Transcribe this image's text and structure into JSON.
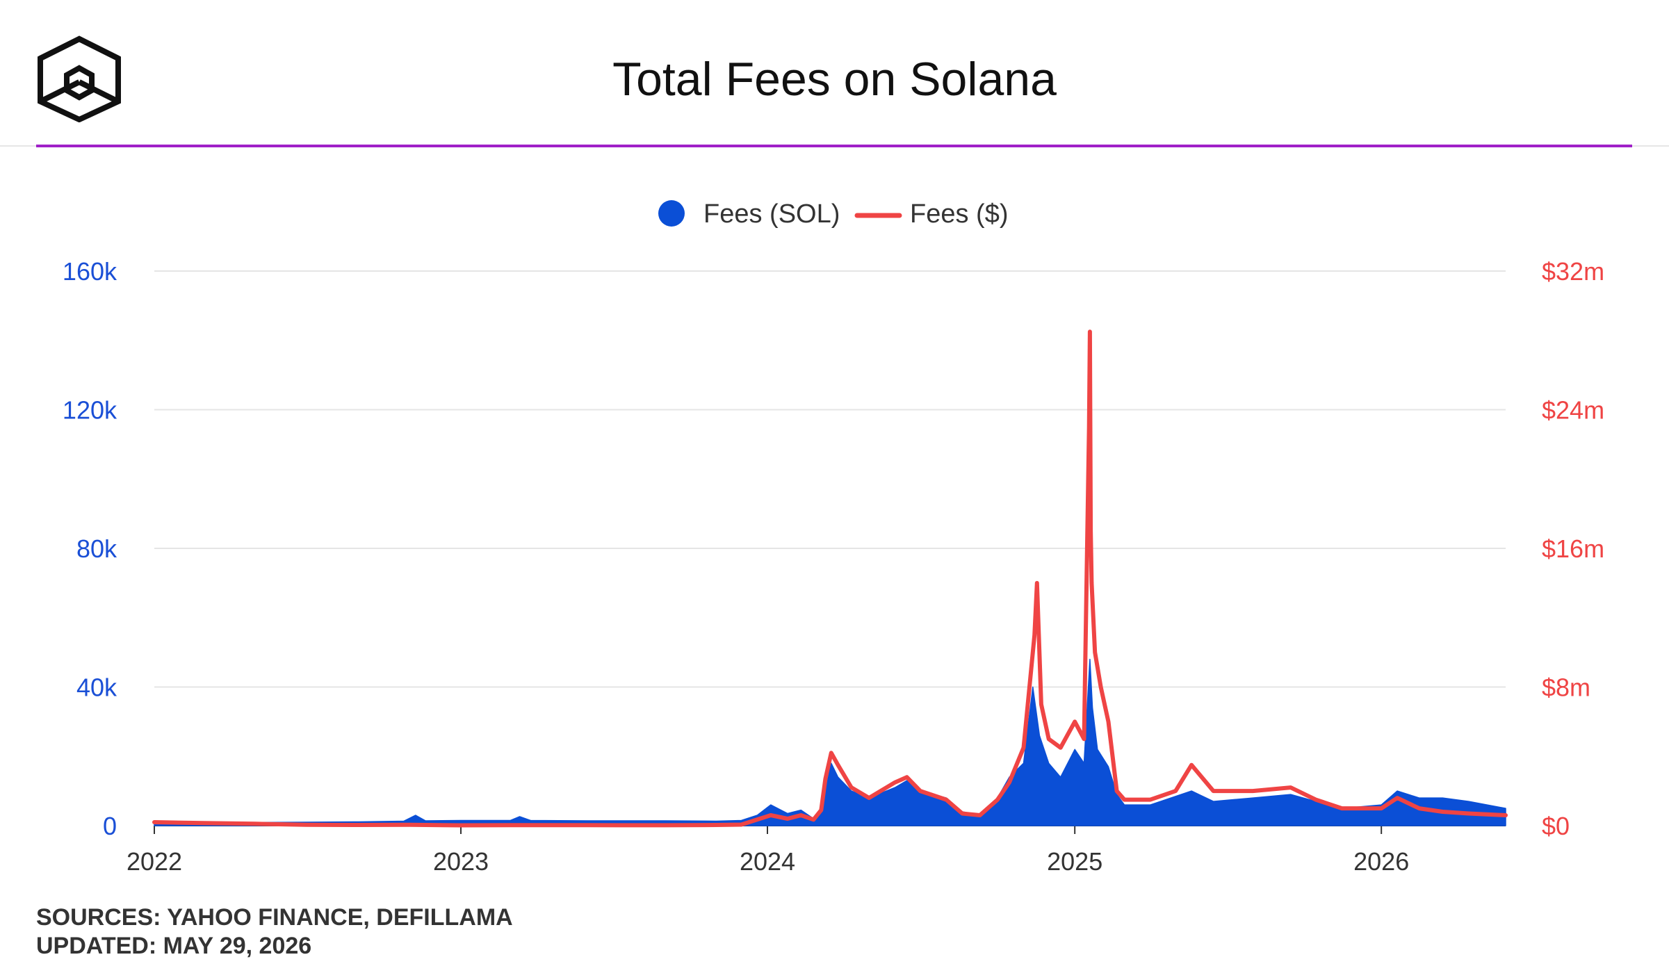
{
  "header": {
    "title": "Total Fees on Solana",
    "logo_icon": "cube-logo-icon",
    "accent_color": "#a020c8"
  },
  "footer": {
    "sources": "SOURCES: YAHOO FINANCE, DEFILLAMA",
    "updated": "UPDATED: MAY 29, 2026"
  },
  "chart_data": {
    "type": "area",
    "title": "Total Fees on Solana",
    "legend_position": "top-center",
    "grid": true,
    "x_axis": {
      "label": "",
      "range": [
        "2022-01-01",
        "2026-05-29"
      ],
      "ticks": [
        "2022",
        "2023",
        "2024",
        "2025",
        "2026"
      ]
    },
    "y_axis_left": {
      "label": "",
      "range": [
        0,
        160000
      ],
      "ticks": [
        "0",
        "40k",
        "80k",
        "120k",
        "160k"
      ],
      "color": "#1a4fd6"
    },
    "y_axis_right": {
      "label": "",
      "range": [
        0,
        32000000
      ],
      "ticks": [
        "$0",
        "$8m",
        "$16m",
        "$24m",
        "$32m"
      ],
      "color": "#ef4444"
    },
    "series": [
      {
        "name": "Fees (SOL)",
        "type": "area",
        "axis": "left",
        "color": "#0b4fd6",
        "points": [
          [
            "2022-01-01",
            1200
          ],
          [
            "2022-03-01",
            1000
          ],
          [
            "2022-05-01",
            900
          ],
          [
            "2022-07-01",
            1000
          ],
          [
            "2022-09-01",
            1100
          ],
          [
            "2022-10-25",
            1300
          ],
          [
            "2022-11-08",
            3000
          ],
          [
            "2022-11-20",
            1400
          ],
          [
            "2023-01-01",
            1500
          ],
          [
            "2023-03-01",
            1500
          ],
          [
            "2023-03-12",
            2600
          ],
          [
            "2023-03-25",
            1500
          ],
          [
            "2023-06-01",
            1400
          ],
          [
            "2023-09-01",
            1400
          ],
          [
            "2023-11-01",
            1300
          ],
          [
            "2023-12-01",
            1500
          ],
          [
            "2023-12-20",
            3000
          ],
          [
            "2024-01-05",
            6000
          ],
          [
            "2024-01-25",
            3500
          ],
          [
            "2024-02-10",
            4500
          ],
          [
            "2024-02-25",
            2000
          ],
          [
            "2024-03-05",
            4000
          ],
          [
            "2024-03-17",
            18000
          ],
          [
            "2024-03-25",
            14000
          ],
          [
            "2024-04-10",
            10000
          ],
          [
            "2024-05-01",
            8000
          ],
          [
            "2024-06-01",
            11000
          ],
          [
            "2024-06-15",
            13000
          ],
          [
            "2024-07-01",
            10000
          ],
          [
            "2024-08-01",
            8000
          ],
          [
            "2024-08-20",
            4000
          ],
          [
            "2024-09-10",
            3000
          ],
          [
            "2024-10-01",
            8000
          ],
          [
            "2024-10-15",
            14000
          ],
          [
            "2024-11-01",
            18000
          ],
          [
            "2024-11-12",
            40000
          ],
          [
            "2024-11-20",
            26000
          ],
          [
            "2024-12-01",
            18000
          ],
          [
            "2024-12-15",
            14000
          ],
          [
            "2025-01-01",
            22000
          ],
          [
            "2025-01-12",
            18000
          ],
          [
            "2025-01-19",
            48000
          ],
          [
            "2025-01-22",
            34000
          ],
          [
            "2025-01-28",
            22000
          ],
          [
            "2025-02-10",
            17000
          ],
          [
            "2025-02-20",
            9000
          ],
          [
            "2025-03-01",
            6000
          ],
          [
            "2025-04-01",
            6000
          ],
          [
            "2025-05-20",
            10000
          ],
          [
            "2025-06-15",
            7000
          ],
          [
            "2025-08-01",
            8000
          ],
          [
            "2025-09-15",
            9000
          ],
          [
            "2025-10-15",
            7000
          ],
          [
            "2025-11-15",
            5000
          ],
          [
            "2026-01-01",
            6000
          ],
          [
            "2026-01-20",
            10000
          ],
          [
            "2026-02-15",
            8000
          ],
          [
            "2026-03-15",
            8000
          ],
          [
            "2026-04-15",
            7000
          ],
          [
            "2026-05-29",
            5000
          ]
        ]
      },
      {
        "name": "Fees ($)",
        "type": "line",
        "axis": "right",
        "color": "#ef4444",
        "points": [
          [
            "2022-01-01",
            200000
          ],
          [
            "2022-03-01",
            150000
          ],
          [
            "2022-05-01",
            110000
          ],
          [
            "2022-07-01",
            50000
          ],
          [
            "2022-09-01",
            40000
          ],
          [
            "2022-11-01",
            50000
          ],
          [
            "2023-01-01",
            20000
          ],
          [
            "2023-03-01",
            30000
          ],
          [
            "2023-06-01",
            30000
          ],
          [
            "2023-09-01",
            25000
          ],
          [
            "2023-11-01",
            40000
          ],
          [
            "2023-12-01",
            60000
          ],
          [
            "2024-01-05",
            600000
          ],
          [
            "2024-01-25",
            400000
          ],
          [
            "2024-02-10",
            600000
          ],
          [
            "2024-02-25",
            350000
          ],
          [
            "2024-03-05",
            900000
          ],
          [
            "2024-03-10",
            2700000
          ],
          [
            "2024-03-17",
            4200000
          ],
          [
            "2024-03-25",
            3500000
          ],
          [
            "2024-04-10",
            2200000
          ],
          [
            "2024-05-01",
            1600000
          ],
          [
            "2024-06-01",
            2500000
          ],
          [
            "2024-06-15",
            2800000
          ],
          [
            "2024-07-01",
            2000000
          ],
          [
            "2024-08-01",
            1500000
          ],
          [
            "2024-08-20",
            700000
          ],
          [
            "2024-09-10",
            600000
          ],
          [
            "2024-10-01",
            1500000
          ],
          [
            "2024-10-15",
            2500000
          ],
          [
            "2024-11-01",
            4500000
          ],
          [
            "2024-11-10",
            9000000
          ],
          [
            "2024-11-14",
            11000000
          ],
          [
            "2024-11-17",
            14000000
          ],
          [
            "2024-11-22",
            7000000
          ],
          [
            "2024-12-01",
            5000000
          ],
          [
            "2024-12-15",
            4500000
          ],
          [
            "2025-01-01",
            6000000
          ],
          [
            "2025-01-12",
            5000000
          ],
          [
            "2025-01-18",
            23000000
          ],
          [
            "2025-01-19",
            28500000
          ],
          [
            "2025-01-20",
            17000000
          ],
          [
            "2025-01-21",
            14000000
          ],
          [
            "2025-01-25",
            10000000
          ],
          [
            "2025-02-01",
            8000000
          ],
          [
            "2025-02-10",
            6000000
          ],
          [
            "2025-02-20",
            2000000
          ],
          [
            "2025-03-01",
            1500000
          ],
          [
            "2025-04-01",
            1500000
          ],
          [
            "2025-05-01",
            2000000
          ],
          [
            "2025-05-20",
            3500000
          ],
          [
            "2025-06-15",
            2000000
          ],
          [
            "2025-08-01",
            2000000
          ],
          [
            "2025-09-15",
            2200000
          ],
          [
            "2025-10-15",
            1500000
          ],
          [
            "2025-11-15",
            1000000
          ],
          [
            "2026-01-01",
            1000000
          ],
          [
            "2026-01-20",
            1600000
          ],
          [
            "2026-02-15",
            1000000
          ],
          [
            "2026-03-15",
            800000
          ],
          [
            "2026-04-15",
            700000
          ],
          [
            "2026-05-29",
            600000
          ]
        ]
      }
    ]
  }
}
